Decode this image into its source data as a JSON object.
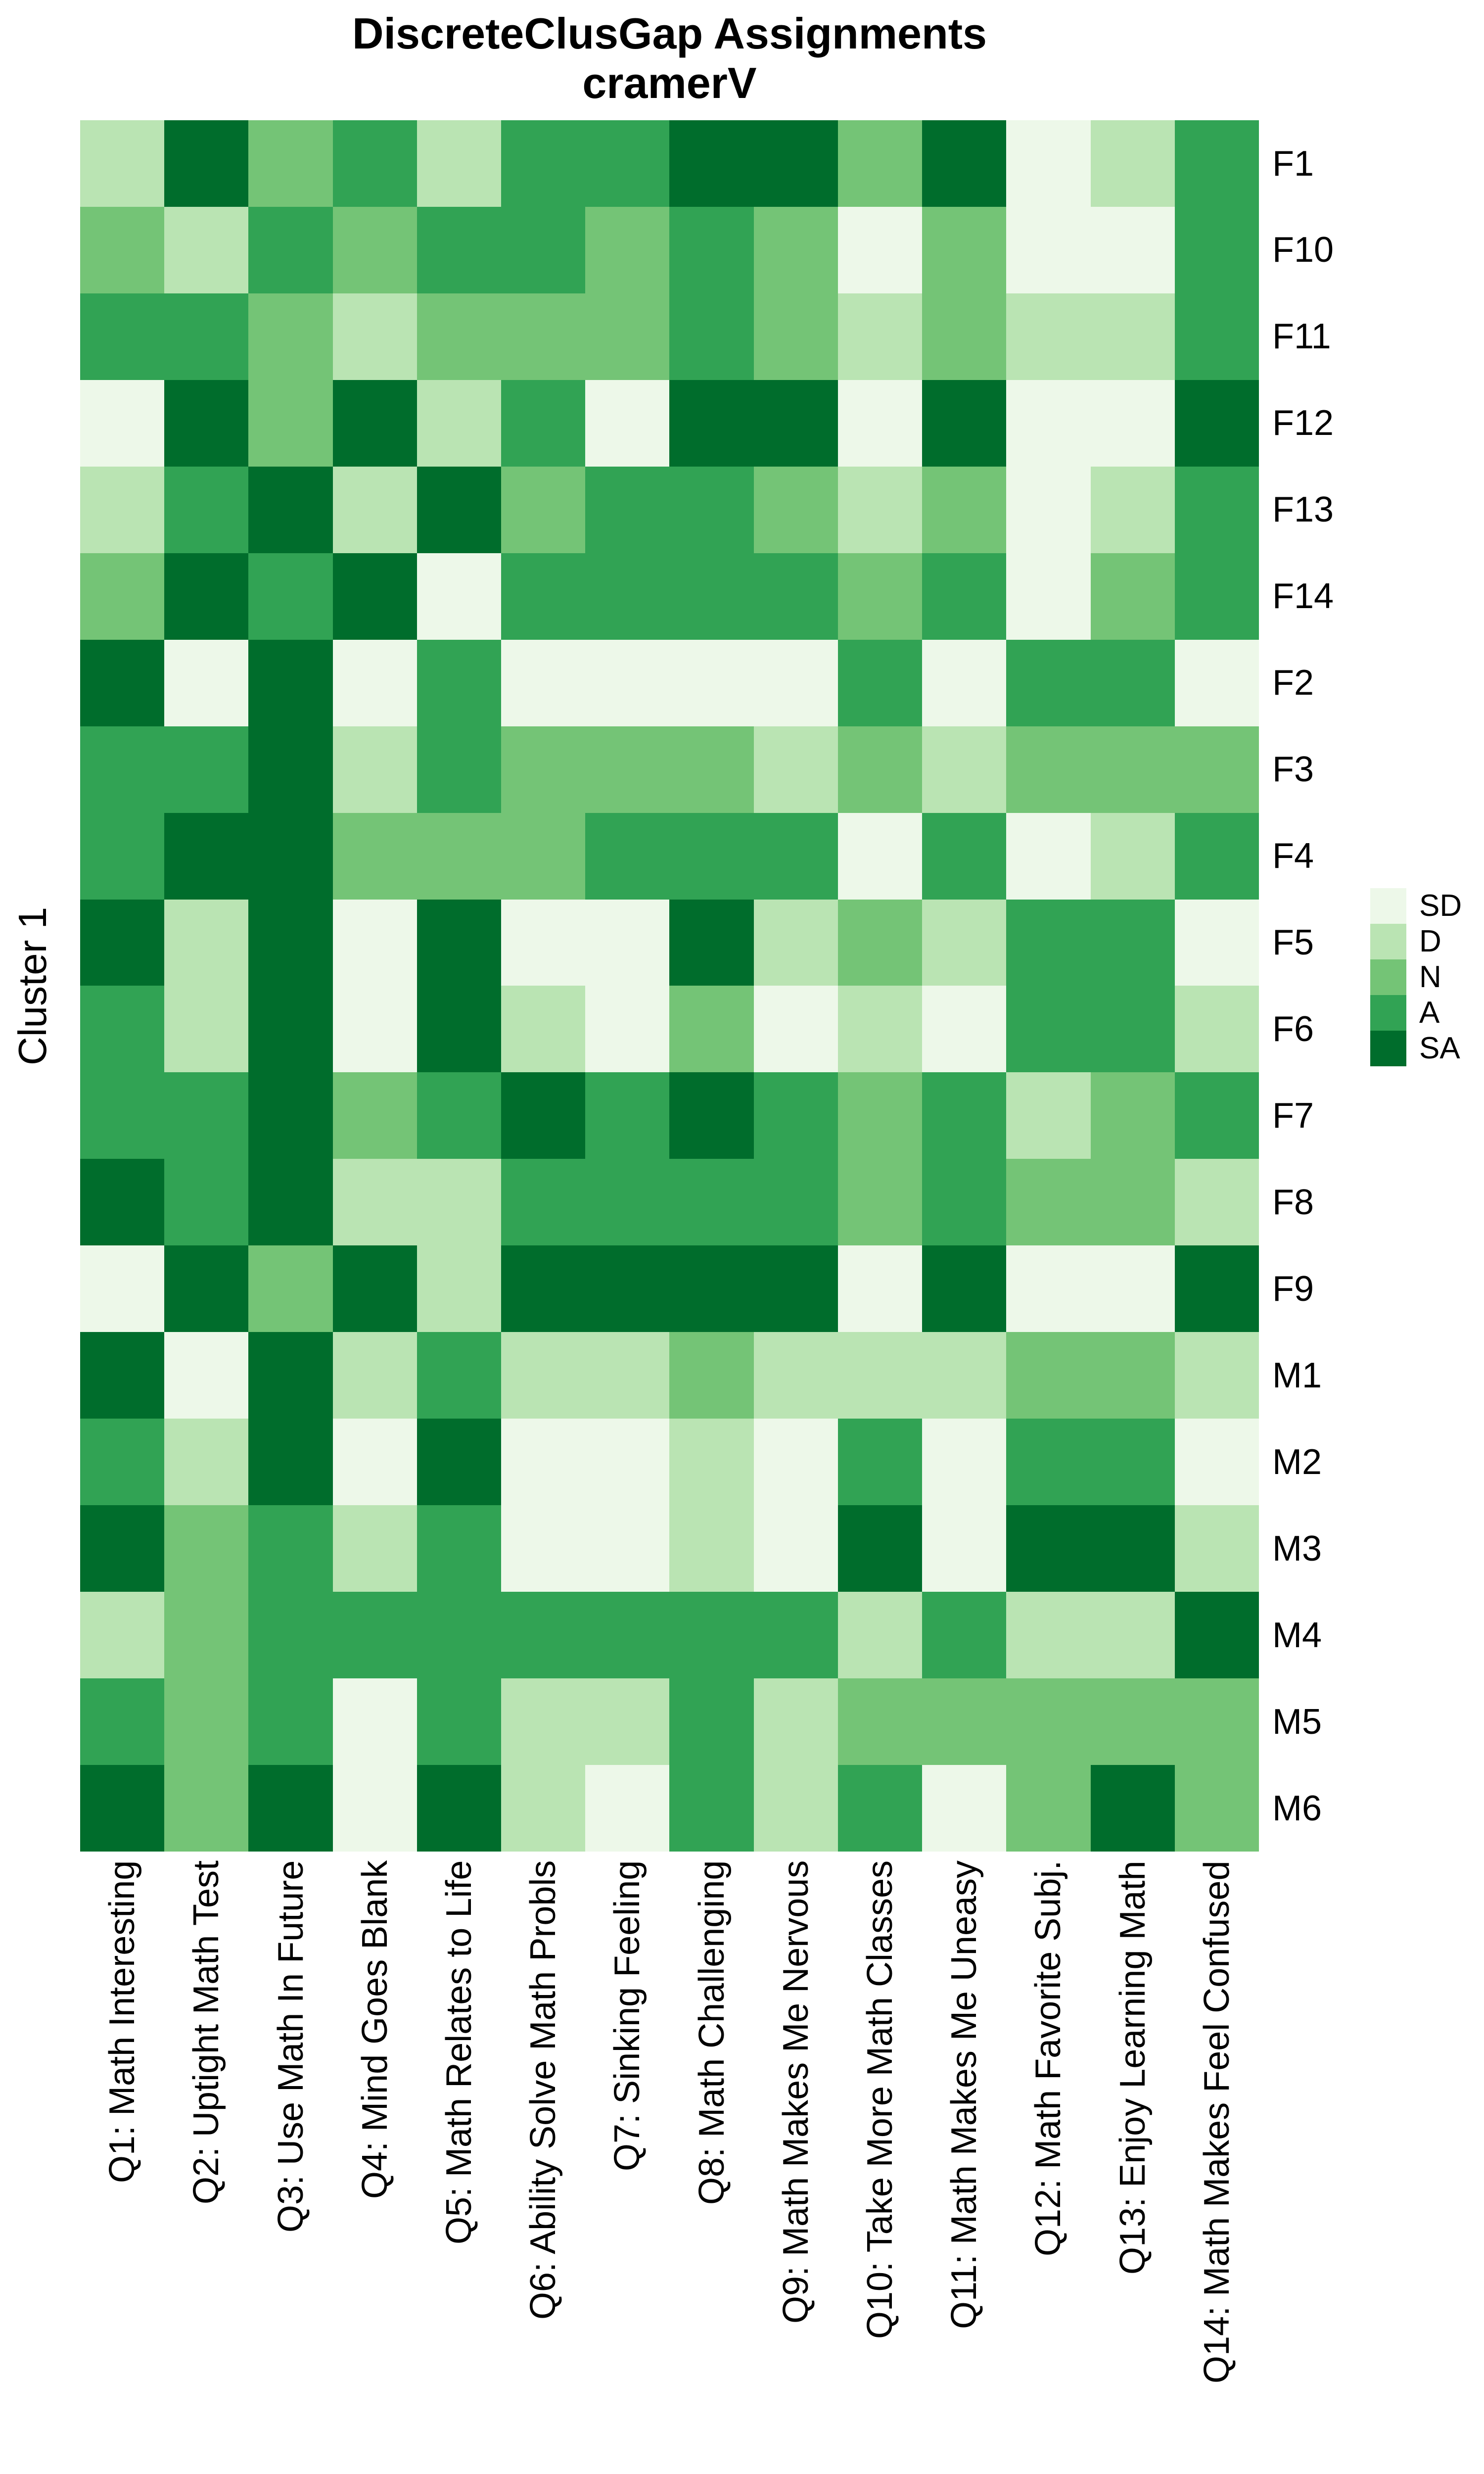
{
  "title": {
    "line1": "DiscreteClusGap Assignments",
    "line2": "cramerV"
  },
  "y_axis_label": "Cluster 1",
  "legend": {
    "entries": [
      {
        "label": "SD",
        "color": "#EDF8E9"
      },
      {
        "label": "D",
        "color": "#BAE4B3"
      },
      {
        "label": "N",
        "color": "#74C476"
      },
      {
        "label": "A",
        "color": "#31A354"
      },
      {
        "label": "SA",
        "color": "#006D2C"
      }
    ]
  },
  "chart_data": {
    "type": "heatmap",
    "title": "DiscreteClusGap Assignments cramerV",
    "ylabel": "Cluster 1",
    "legend_position": "right",
    "grid": "off",
    "levels": [
      "SD",
      "D",
      "N",
      "A",
      "SA"
    ],
    "level_colors": {
      "SD": "#EDF8E9",
      "D": "#BAE4B3",
      "N": "#74C476",
      "A": "#31A354",
      "SA": "#006D2C"
    },
    "rows": [
      "F1",
      "F10",
      "F11",
      "F12",
      "F13",
      "F14",
      "F2",
      "F3",
      "F4",
      "F5",
      "F6",
      "F7",
      "F8",
      "F9",
      "M1",
      "M2",
      "M3",
      "M4",
      "M5",
      "M6"
    ],
    "columns": [
      "Q1: Math Interesting",
      "Q2: Uptight Math Test",
      "Q3: Use Math In Future",
      "Q4: Mind Goes Blank",
      "Q5: Math Relates to Life",
      "Q6: Ability Solve Math Probls",
      "Q7: Sinking Feeling",
      "Q8: Math Challenging",
      "Q9: Math Makes Me Nervous",
      "Q10: Take More Math Classes",
      "Q11: Math Makes Me Uneasy",
      "Q12: Math Favorite Subj.",
      "Q13: Enjoy Learning Math",
      "Q14: Math Makes Feel Confused"
    ],
    "values": [
      [
        "D",
        "SA",
        "N",
        "A",
        "D",
        "A",
        "A",
        "SA",
        "SA",
        "N",
        "SA",
        "SD",
        "D",
        "A"
      ],
      [
        "N",
        "D",
        "A",
        "N",
        "A",
        "A",
        "N",
        "A",
        "N",
        "SD",
        "N",
        "SD",
        "SD",
        "A"
      ],
      [
        "A",
        "A",
        "N",
        "D",
        "N",
        "N",
        "N",
        "A",
        "N",
        "D",
        "N",
        "D",
        "D",
        "A"
      ],
      [
        "SD",
        "SA",
        "N",
        "SA",
        "D",
        "A",
        "SD",
        "SA",
        "SA",
        "SD",
        "SA",
        "SD",
        "SD",
        "SA"
      ],
      [
        "D",
        "A",
        "SA",
        "D",
        "SA",
        "N",
        "A",
        "A",
        "N",
        "D",
        "N",
        "SD",
        "D",
        "A"
      ],
      [
        "N",
        "SA",
        "A",
        "SA",
        "SD",
        "A",
        "A",
        "A",
        "A",
        "N",
        "A",
        "SD",
        "N",
        "A"
      ],
      [
        "SA",
        "SD",
        "SA",
        "SD",
        "A",
        "SD",
        "SD",
        "SD",
        "SD",
        "A",
        "SD",
        "A",
        "A",
        "SD"
      ],
      [
        "A",
        "A",
        "SA",
        "D",
        "A",
        "N",
        "N",
        "N",
        "D",
        "N",
        "D",
        "N",
        "N",
        "N"
      ],
      [
        "A",
        "SA",
        "SA",
        "N",
        "N",
        "N",
        "A",
        "A",
        "A",
        "SD",
        "A",
        "SD",
        "D",
        "A"
      ],
      [
        "SA",
        "D",
        "SA",
        "SD",
        "SA",
        "SD",
        "SD",
        "SA",
        "D",
        "N",
        "D",
        "A",
        "A",
        "SD"
      ],
      [
        "A",
        "D",
        "SA",
        "SD",
        "SA",
        "D",
        "SD",
        "N",
        "SD",
        "D",
        "SD",
        "A",
        "A",
        "D"
      ],
      [
        "A",
        "A",
        "SA",
        "N",
        "A",
        "SA",
        "A",
        "SA",
        "A",
        "N",
        "A",
        "D",
        "N",
        "A"
      ],
      [
        "SA",
        "A",
        "SA",
        "D",
        "D",
        "A",
        "A",
        "A",
        "A",
        "N",
        "A",
        "N",
        "N",
        "D"
      ],
      [
        "SD",
        "SA",
        "N",
        "SA",
        "D",
        "SA",
        "SA",
        "SA",
        "SA",
        "SD",
        "SA",
        "SD",
        "SD",
        "SA"
      ],
      [
        "SA",
        "SD",
        "SA",
        "D",
        "A",
        "D",
        "D",
        "N",
        "D",
        "D",
        "D",
        "N",
        "N",
        "D"
      ],
      [
        "A",
        "D",
        "SA",
        "SD",
        "SA",
        "SD",
        "SD",
        "D",
        "SD",
        "A",
        "SD",
        "A",
        "A",
        "SD"
      ],
      [
        "SA",
        "N",
        "A",
        "D",
        "A",
        "SD",
        "SD",
        "D",
        "SD",
        "SA",
        "SD",
        "SA",
        "SA",
        "D"
      ],
      [
        "D",
        "N",
        "A",
        "A",
        "A",
        "A",
        "A",
        "A",
        "A",
        "D",
        "A",
        "D",
        "D",
        "SA"
      ],
      [
        "A",
        "N",
        "A",
        "SD",
        "A",
        "D",
        "D",
        "A",
        "D",
        "N",
        "N",
        "N",
        "N",
        "N"
      ],
      [
        "SA",
        "N",
        "SA",
        "SD",
        "SA",
        "D",
        "SD",
        "A",
        "D",
        "A",
        "SD",
        "N",
        "SA",
        "N"
      ]
    ]
  }
}
